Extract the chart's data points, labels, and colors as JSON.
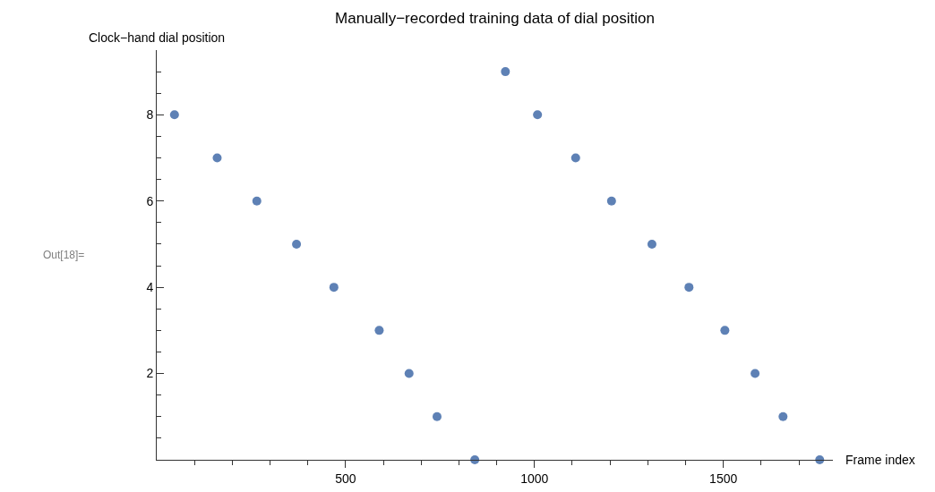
{
  "chart_data": {
    "type": "scatter",
    "title": "Manually−recorded training data of dial position",
    "xlabel": "Frame index",
    "ylabel": "Clock−hand dial position",
    "annotations": [
      "Out[18]="
    ],
    "x": [
      47,
      160,
      265,
      370,
      469,
      589,
      668,
      742,
      842,
      923,
      1008,
      1109,
      1204,
      1311,
      1409,
      1504,
      1584,
      1658,
      1755
    ],
    "series": [
      {
        "color": "#5e81b5",
        "values": [
          8,
          7,
          6,
          5,
          4,
          3,
          2,
          1,
          0,
          9,
          8,
          7,
          6,
          5,
          4,
          3,
          2,
          1,
          0
        ]
      }
    ],
    "marker": "circle",
    "xlim": [
      0,
      1790
    ],
    "ylim": [
      0,
      9.5
    ],
    "xticks": [
      {
        "value": 100,
        "label": null
      },
      {
        "value": 200,
        "label": null
      },
      {
        "value": 300,
        "label": null
      },
      {
        "value": 400,
        "label": null
      },
      500,
      {
        "value": 600,
        "label": null
      },
      {
        "value": 700,
        "label": null
      },
      {
        "value": 800,
        "label": null
      },
      {
        "value": 900,
        "label": null
      },
      1000,
      {
        "value": 1100,
        "label": null
      },
      {
        "value": 1200,
        "label": null
      },
      {
        "value": 1300,
        "label": null
      },
      {
        "value": 1400,
        "label": null
      },
      1500,
      {
        "value": 1600,
        "label": null
      },
      {
        "value": 1700,
        "label": null
      }
    ],
    "yticks": [
      {
        "value": 0.5,
        "label": null
      },
      {
        "value": 1,
        "label": null
      },
      {
        "value": 1.5,
        "label": null
      },
      2,
      {
        "value": 2.5,
        "label": null
      },
      {
        "value": 3,
        "label": null
      },
      {
        "value": 3.5,
        "label": null
      },
      4,
      {
        "value": 4.5,
        "label": null
      },
      {
        "value": 5,
        "label": null
      },
      {
        "value": 5.5,
        "label": null
      },
      6,
      {
        "value": 6.5,
        "label": null
      },
      {
        "value": 7,
        "label": null
      },
      {
        "value": 7.5,
        "label": null
      },
      8,
      {
        "value": 8.5,
        "label": null
      },
      {
        "value": 9,
        "label": null
      }
    ]
  }
}
